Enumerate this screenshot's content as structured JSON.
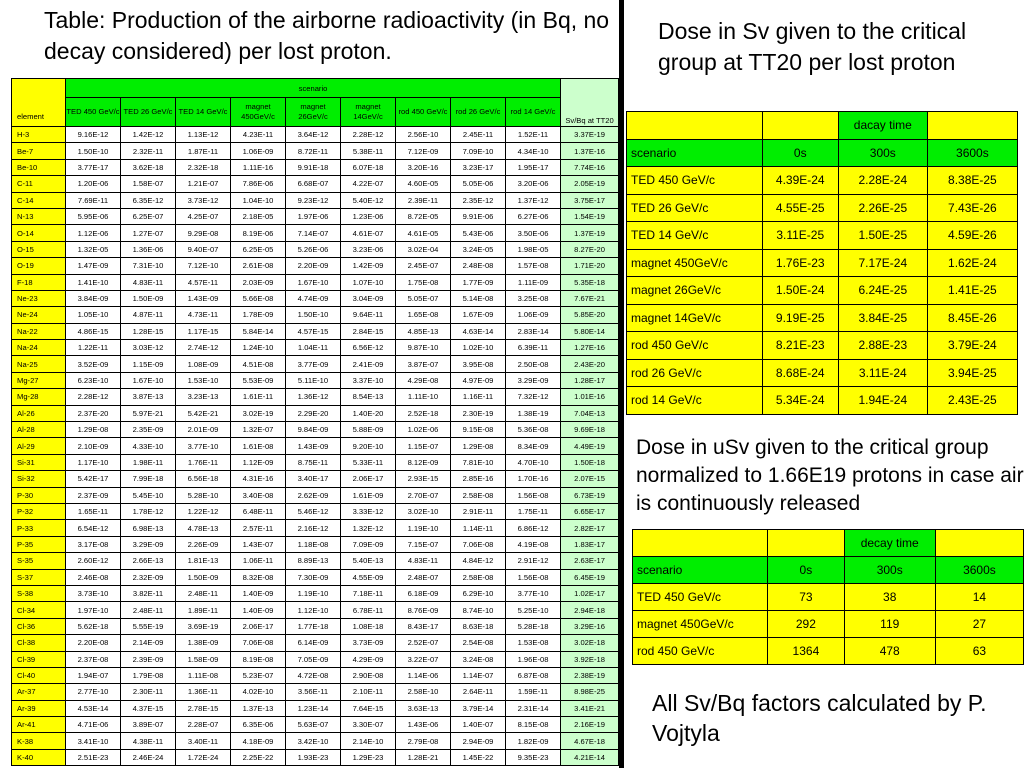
{
  "title_left": "Table: Production of the airborne radioactivity (in Bq, no decay considered) per lost proton.",
  "title_right1": "Dose in Sv given to the critical group at TT20 per lost proton",
  "title_right2": "Dose in uSv given to the critical group normalized to 1.66E19 protons in case air is continuously released",
  "title_right3": "All Sv/Bq factors calculated by P. Vojtyla",
  "main_table": {
    "header_element": "element",
    "header_scenario": "scenario",
    "header_factor": "Sv/Bq at TT20",
    "columns": [
      "TED 450 GeV/c",
      "TED 26 GeV/c",
      "TED 14 GeV/c",
      "magnet 450GeV/c",
      "magnet 26GeV/c",
      "magnet 14GeV/c",
      "rod 450 GeV/c",
      "rod 26 GeV/c",
      "rod 14 GeV/c"
    ],
    "rows": [
      [
        "H-3",
        "9.16E-12",
        "1.42E-12",
        "1.13E-12",
        "4.23E-11",
        "3.64E-12",
        "2.28E-12",
        "2.56E-10",
        "2.45E-11",
        "1.52E-11",
        "3.37E-19"
      ],
      [
        "Be-7",
        "1.50E-10",
        "2.32E-11",
        "1.87E-11",
        "1.06E-09",
        "8.72E-11",
        "5.38E-11",
        "7.12E-09",
        "7.09E-10",
        "4.34E-10",
        "1.37E-16"
      ],
      [
        "Be-10",
        "3.77E-17",
        "3.62E-18",
        "2.32E-18",
        "1.11E-16",
        "9.91E-18",
        "6.07E-18",
        "3.20E-16",
        "3.23E-17",
        "1.95E-17",
        "7.74E-16"
      ],
      [
        "C-11",
        "1.20E-06",
        "1.58E-07",
        "1.21E-07",
        "7.86E-06",
        "6.68E-07",
        "4.22E-07",
        "4.60E-05",
        "5.05E-06",
        "3.20E-06",
        "2.05E-19"
      ],
      [
        "C-14",
        "7.69E-11",
        "6.35E-12",
        "3.73E-12",
        "1.04E-10",
        "9.23E-12",
        "5.40E-12",
        "2.39E-11",
        "2.35E-12",
        "1.37E-12",
        "3.75E-17"
      ],
      [
        "N-13",
        "5.95E-06",
        "6.25E-07",
        "4.25E-07",
        "2.18E-05",
        "1.97E-06",
        "1.23E-06",
        "8.72E-05",
        "9.91E-06",
        "6.27E-06",
        "1.54E-19"
      ],
      [
        "O-14",
        "1.12E-06",
        "1.27E-07",
        "9.29E-08",
        "8.19E-06",
        "7.14E-07",
        "4.61E-07",
        "4.61E-05",
        "5.43E-06",
        "3.50E-06",
        "1.37E-19"
      ],
      [
        "O-15",
        "1.32E-05",
        "1.36E-06",
        "9.40E-07",
        "6.25E-05",
        "5.26E-06",
        "3.23E-06",
        "3.02E-04",
        "3.24E-05",
        "1.98E-05",
        "8.27E-20"
      ],
      [
        "O-19",
        "1.47E-09",
        "7.31E-10",
        "7.12E-10",
        "2.61E-08",
        "2.20E-09",
        "1.42E-09",
        "2.45E-07",
        "2.48E-08",
        "1.57E-08",
        "1.71E-20"
      ],
      [
        "F-18",
        "1.41E-10",
        "4.83E-11",
        "4.57E-11",
        "2.03E-09",
        "1.67E-10",
        "1.07E-10",
        "1.75E-08",
        "1.77E-09",
        "1.11E-09",
        "5.35E-18"
      ],
      [
        "Ne-23",
        "3.84E-09",
        "1.50E-09",
        "1.43E-09",
        "5.66E-08",
        "4.74E-09",
        "3.04E-09",
        "5.05E-07",
        "5.14E-08",
        "3.25E-08",
        "7.67E-21"
      ],
      [
        "Ne-24",
        "1.05E-10",
        "4.87E-11",
        "4.73E-11",
        "1.78E-09",
        "1.50E-10",
        "9.64E-11",
        "1.65E-08",
        "1.67E-09",
        "1.06E-09",
        "5.85E-20"
      ],
      [
        "Na-22",
        "4.86E-15",
        "1.28E-15",
        "1.17E-15",
        "5.84E-14",
        "4.57E-15",
        "2.84E-15",
        "4.85E-13",
        "4.63E-14",
        "2.83E-14",
        "5.80E-14"
      ],
      [
        "Na-24",
        "1.22E-11",
        "3.03E-12",
        "2.74E-12",
        "1.24E-10",
        "1.04E-11",
        "6.56E-12",
        "9.87E-10",
        "1.02E-10",
        "6.39E-11",
        "1.27E-16"
      ],
      [
        "Na-25",
        "3.52E-09",
        "1.15E-09",
        "1.08E-09",
        "4.51E-08",
        "3.77E-09",
        "2.41E-09",
        "3.87E-07",
        "3.95E-08",
        "2.50E-08",
        "2.43E-20"
      ],
      [
        "Mg-27",
        "6.23E-10",
        "1.67E-10",
        "1.53E-10",
        "5.53E-09",
        "5.11E-10",
        "3.37E-10",
        "4.29E-08",
        "4.97E-09",
        "3.29E-09",
        "1.28E-17"
      ],
      [
        "Mg-28",
        "2.28E-12",
        "3.87E-13",
        "3.23E-13",
        "1.61E-11",
        "1.36E-12",
        "8.54E-13",
        "1.11E-10",
        "1.16E-11",
        "7.32E-12",
        "1.01E-16"
      ],
      [
        "Al-26",
        "2.37E-20",
        "5.97E-21",
        "5.42E-21",
        "3.02E-19",
        "2.29E-20",
        "1.40E-20",
        "2.52E-18",
        "2.30E-19",
        "1.38E-19",
        "7.04E-13"
      ],
      [
        "Al-28",
        "1.29E-08",
        "2.35E-09",
        "2.01E-09",
        "1.32E-07",
        "9.84E-09",
        "5.88E-09",
        "1.02E-06",
        "9.15E-08",
        "5.36E-08",
        "9.69E-18"
      ],
      [
        "Al-29",
        "2.10E-09",
        "4.33E-10",
        "3.77E-10",
        "1.61E-08",
        "1.43E-09",
        "9.20E-10",
        "1.15E-07",
        "1.29E-08",
        "8.34E-09",
        "4.49E-19"
      ],
      [
        "Si-31",
        "1.17E-10",
        "1.98E-11",
        "1.76E-11",
        "1.12E-09",
        "8.75E-11",
        "5.33E-11",
        "8.12E-09",
        "7.81E-10",
        "4.70E-10",
        "1.50E-18"
      ],
      [
        "Si-32",
        "5.42E-17",
        "7.99E-18",
        "6.56E-18",
        "4.31E-16",
        "3.40E-17",
        "2.06E-17",
        "2.93E-15",
        "2.85E-16",
        "1.70E-16",
        "2.07E-15"
      ],
      [
        "P-30",
        "2.37E-09",
        "5.45E-10",
        "5.28E-10",
        "3.40E-08",
        "2.62E-09",
        "1.61E-09",
        "2.70E-07",
        "2.58E-08",
        "1.56E-08",
        "6.73E-19"
      ],
      [
        "P-32",
        "1.65E-11",
        "1.78E-12",
        "1.22E-12",
        "6.48E-11",
        "5.46E-12",
        "3.33E-12",
        "3.02E-10",
        "2.91E-11",
        "1.75E-11",
        "6.65E-17"
      ],
      [
        "P-33",
        "6.54E-12",
        "6.98E-13",
        "4.78E-13",
        "2.57E-11",
        "2.16E-12",
        "1.32E-12",
        "1.19E-10",
        "1.14E-11",
        "6.86E-12",
        "2.82E-17"
      ],
      [
        "P-35",
        "3.17E-08",
        "3.29E-09",
        "2.26E-09",
        "1.43E-07",
        "1.18E-08",
        "7.09E-09",
        "7.15E-07",
        "7.06E-08",
        "4.19E-08",
        "1.83E-17"
      ],
      [
        "S-35",
        "2.60E-12",
        "2.66E-13",
        "1.81E-13",
        "1.06E-11",
        "8.89E-13",
        "5.40E-13",
        "4.83E-11",
        "4.84E-12",
        "2.91E-12",
        "2.63E-17"
      ],
      [
        "S-37",
        "2.46E-08",
        "2.32E-09",
        "1.50E-09",
        "8.32E-08",
        "7.30E-09",
        "4.55E-09",
        "2.48E-07",
        "2.58E-08",
        "1.56E-08",
        "6.45E-19"
      ],
      [
        "S-38",
        "3.73E-10",
        "3.82E-11",
        "2.48E-11",
        "1.40E-09",
        "1.19E-10",
        "7.18E-11",
        "6.18E-09",
        "6.29E-10",
        "3.77E-10",
        "1.02E-17"
      ],
      [
        "Cl-34",
        "1.97E-10",
        "2.48E-11",
        "1.89E-11",
        "1.40E-09",
        "1.12E-10",
        "6.78E-11",
        "8.76E-09",
        "8.74E-10",
        "5.25E-10",
        "2.94E-18"
      ],
      [
        "Cl-36",
        "5.62E-18",
        "5.55E-19",
        "3.69E-19",
        "2.06E-17",
        "1.77E-18",
        "1.08E-18",
        "8.43E-17",
        "8.63E-18",
        "5.28E-18",
        "3.29E-16"
      ],
      [
        "Cl-38",
        "2.20E-08",
        "2.14E-09",
        "1.38E-09",
        "7.06E-08",
        "6.14E-09",
        "3.73E-09",
        "2.52E-07",
        "2.54E-08",
        "1.53E-08",
        "3.02E-18"
      ],
      [
        "Cl-39",
        "2.37E-08",
        "2.39E-09",
        "1.58E-09",
        "8.19E-08",
        "7.05E-09",
        "4.29E-09",
        "3.22E-07",
        "3.24E-08",
        "1.96E-08",
        "3.92E-18"
      ],
      [
        "Cl-40",
        "1.94E-07",
        "1.79E-08",
        "1.11E-08",
        "5.23E-07",
        "4.72E-08",
        "2.90E-08",
        "1.14E-06",
        "1.14E-07",
        "6.87E-08",
        "2.38E-19"
      ],
      [
        "Ar-37",
        "2.77E-10",
        "2.30E-11",
        "1.36E-11",
        "4.02E-10",
        "3.56E-11",
        "2.10E-11",
        "2.58E-10",
        "2.64E-11",
        "1.59E-11",
        "8.98E-25"
      ],
      [
        "Ar-39",
        "4.53E-14",
        "4.37E-15",
        "2.78E-15",
        "1.37E-13",
        "1.23E-14",
        "7.64E-15",
        "3.63E-13",
        "3.79E-14",
        "2.31E-14",
        "3.41E-21"
      ],
      [
        "Ar-41",
        "4.71E-06",
        "3.89E-07",
        "2.28E-07",
        "6.35E-06",
        "5.63E-07",
        "3.30E-07",
        "1.43E-06",
        "1.40E-07",
        "8.15E-08",
        "2.16E-19"
      ],
      [
        "K-38",
        "3.41E-10",
        "4.38E-11",
        "3.40E-11",
        "4.18E-09",
        "3.42E-10",
        "2.14E-10",
        "2.79E-08",
        "2.94E-09",
        "1.82E-09",
        "4.67E-18"
      ],
      [
        "K-40",
        "2.51E-23",
        "2.46E-24",
        "1.72E-24",
        "2.25E-22",
        "1.93E-23",
        "1.29E-23",
        "1.28E-21",
        "1.45E-22",
        "9.35E-23",
        "4.21E-14"
      ]
    ]
  },
  "dose_table_1": {
    "top_label": "dacay time",
    "header": [
      "scenario",
      "0s",
      "300s",
      "3600s"
    ],
    "rows": [
      [
        "TED 450 GeV/c",
        "4.39E-24",
        "2.28E-24",
        "8.38E-25"
      ],
      [
        "TED 26 GeV/c",
        "4.55E-25",
        "2.26E-25",
        "7.43E-26"
      ],
      [
        "TED 14 GeV/c",
        "3.11E-25",
        "1.50E-25",
        "4.59E-26"
      ],
      [
        "magnet 450GeV/c",
        "1.76E-23",
        "7.17E-24",
        "1.62E-24"
      ],
      [
        "magnet 26GeV/c",
        "1.50E-24",
        "6.24E-25",
        "1.41E-25"
      ],
      [
        "magnet 14GeV/c",
        "9.19E-25",
        "3.84E-25",
        "8.45E-26"
      ],
      [
        "rod 450 GeV/c",
        "8.21E-23",
        "2.88E-23",
        "3.79E-24"
      ],
      [
        "rod 26 GeV/c",
        "8.68E-24",
        "3.11E-24",
        "3.94E-25"
      ],
      [
        "rod 14 GeV/c",
        "5.34E-24",
        "1.94E-24",
        "2.43E-25"
      ]
    ]
  },
  "dose_table_2": {
    "top_label": "decay time",
    "header": [
      "scenario",
      "0s",
      "300s",
      "3600s"
    ],
    "rows": [
      [
        "TED 450 GeV/c",
        "73",
        "38",
        "14"
      ],
      [
        "magnet 450GeV/c",
        "292",
        "119",
        "27"
      ],
      [
        "rod 450 GeV/c",
        "1364",
        "478",
        "63"
      ]
    ]
  },
  "colors": {
    "yellow": "#ffff00",
    "green": "#00ee00",
    "light_green": "#ccffcc"
  }
}
